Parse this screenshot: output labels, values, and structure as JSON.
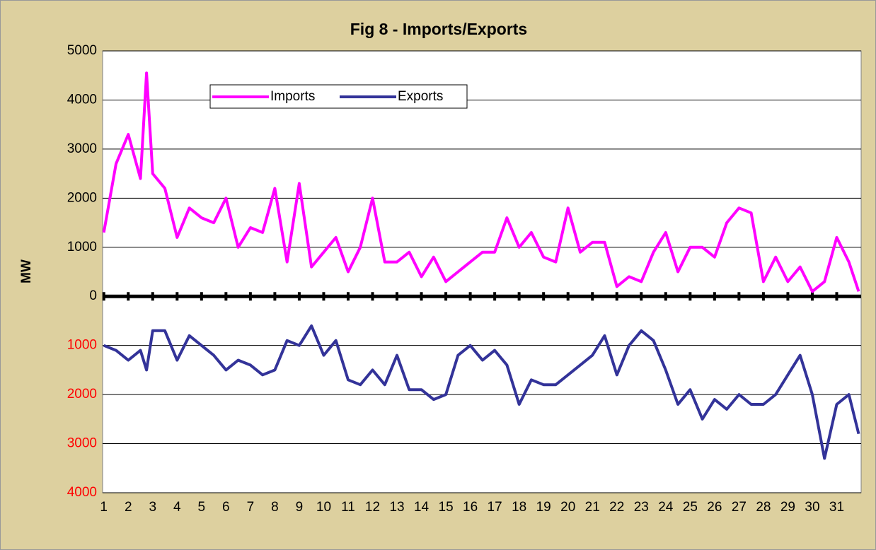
{
  "chart_data": {
    "type": "line",
    "title": "Fig 8 - Imports/Exports",
    "y_label": "MW",
    "x": [
      1,
      1.5,
      2,
      2.5,
      2.75,
      3,
      3.5,
      4,
      4.5,
      5,
      5.5,
      6,
      6.5,
      7,
      7.5,
      8,
      8.5,
      9,
      9.5,
      10,
      10.5,
      11,
      11.5,
      12,
      12.5,
      13,
      13.5,
      14,
      14.5,
      15,
      15.5,
      16,
      16.5,
      17,
      17.5,
      18,
      18.5,
      19,
      19.5,
      20,
      20.5,
      21,
      21.5,
      22,
      22.5,
      23,
      23.5,
      24,
      24.5,
      25,
      25.5,
      26,
      26.5,
      27,
      27.5,
      28,
      28.5,
      29,
      29.5,
      30,
      30.5,
      31,
      31.5,
      31.9
    ],
    "series": [
      {
        "name": "Imports",
        "color": "#ff00ff",
        "values": [
          1300,
          2700,
          3300,
          2400,
          4550,
          2500,
          2200,
          1200,
          1800,
          1600,
          1500,
          2000,
          1000,
          1400,
          1300,
          2200,
          700,
          2300,
          600,
          900,
          1200,
          500,
          1000,
          2000,
          700,
          700,
          900,
          400,
          800,
          300,
          500,
          700,
          900,
          900,
          1600,
          1000,
          1300,
          800,
          700,
          1800,
          900,
          1100,
          1100,
          200,
          400,
          300,
          900,
          1300,
          500,
          1000,
          1000,
          800,
          1500,
          1800,
          1700,
          300,
          800,
          300,
          600,
          100,
          300,
          1200,
          700,
          100
        ]
      },
      {
        "name": "Exports",
        "color": "#333399",
        "values": [
          -1000,
          -1100,
          -1300,
          -1100,
          -1500,
          -700,
          -700,
          -1300,
          -800,
          -1000,
          -1200,
          -1500,
          -1300,
          -1400,
          -1600,
          -1500,
          -900,
          -1000,
          -600,
          -1200,
          -900,
          -1700,
          -1800,
          -1500,
          -1800,
          -1200,
          -1900,
          -1900,
          -2100,
          -2000,
          -1200,
          -1000,
          -1300,
          -1100,
          -1400,
          -2200,
          -1700,
          -1800,
          -1800,
          -1600,
          -1400,
          -1200,
          -800,
          -1600,
          -1000,
          -700,
          -900,
          -1500,
          -2200,
          -1900,
          -2500,
          -2100,
          -2300,
          -2000,
          -2200,
          -2200,
          -2000,
          -1600,
          -1200,
          -2000,
          -3300,
          -2200,
          -2000,
          -2800
        ]
      }
    ],
    "xlim": [
      0.95,
      32.0
    ],
    "xticks": [
      1,
      2,
      3,
      4,
      5,
      6,
      7,
      8,
      9,
      10,
      11,
      12,
      13,
      14,
      15,
      16,
      17,
      18,
      19,
      20,
      21,
      22,
      23,
      24,
      25,
      26,
      27,
      28,
      29,
      30,
      31
    ],
    "ylim": [
      -4000,
      5000
    ],
    "yticks": [
      5000,
      4000,
      3000,
      2000,
      1000,
      0,
      {
        "value": -1000,
        "label": "1000"
      },
      {
        "value": -2000,
        "label": "2000"
      },
      {
        "value": -3000,
        "label": "3000"
      },
      {
        "value": -4000,
        "label": "4000"
      }
    ],
    "negative_tick_color": "#ff0000",
    "grid": true
  }
}
